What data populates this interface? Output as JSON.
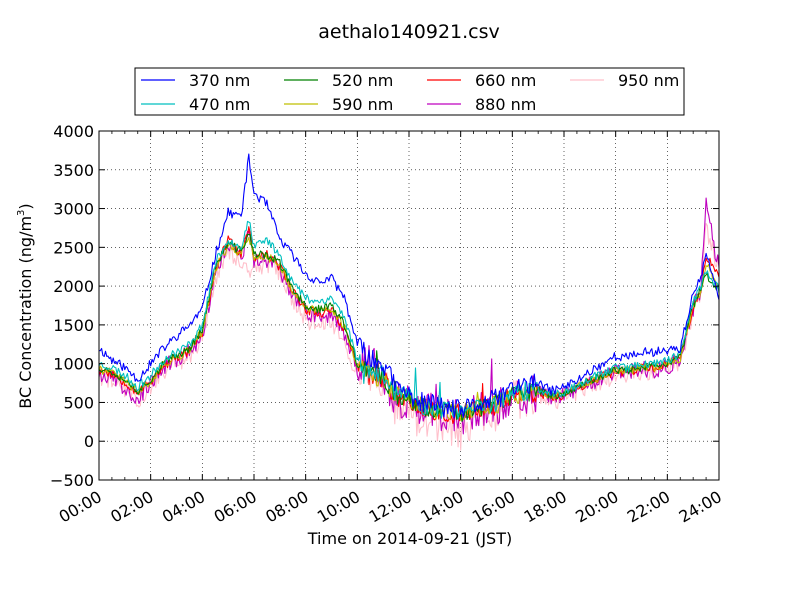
{
  "chart_data": {
    "type": "line",
    "title": "aethalo140921.csv",
    "xlabel": "Time on 2014-09-21 (JST)",
    "ylabel_main": "BC Concentration (ng/m",
    "ylabel_sup": "3",
    "ylabel_end": ")",
    "xlim": [
      0,
      24
    ],
    "ylim": [
      -500,
      4000
    ],
    "grid": true,
    "legend_position": "top",
    "x_ticks": [
      {
        "value": 0,
        "label": "00:00"
      },
      {
        "value": 2,
        "label": "02:00"
      },
      {
        "value": 4,
        "label": "04:00"
      },
      {
        "value": 6,
        "label": "06:00"
      },
      {
        "value": 8,
        "label": "08:00"
      },
      {
        "value": 10,
        "label": "10:00"
      },
      {
        "value": 12,
        "label": "12:00"
      },
      {
        "value": 14,
        "label": "14:00"
      },
      {
        "value": 16,
        "label": "16:00"
      },
      {
        "value": 18,
        "label": "18:00"
      },
      {
        "value": 20,
        "label": "20:00"
      },
      {
        "value": 22,
        "label": "22:00"
      },
      {
        "value": 24,
        "label": "24:00"
      }
    ],
    "y_ticks": [
      {
        "value": 4000,
        "label": "4000"
      },
      {
        "value": 3500,
        "label": "3500"
      },
      {
        "value": 3000,
        "label": "3000"
      },
      {
        "value": 2500,
        "label": "2500"
      },
      {
        "value": 2000,
        "label": "2000"
      },
      {
        "value": 1500,
        "label": "1500"
      },
      {
        "value": 1000,
        "label": "1000"
      },
      {
        "value": 500,
        "label": "500"
      },
      {
        "value": 0,
        "label": "0"
      },
      {
        "value": -500,
        "label": "−500"
      }
    ],
    "series": [
      {
        "name": "370 nm",
        "color": "#0000ff",
        "jitter": 60,
        "seed": 11,
        "x": [
          0,
          0.5,
          1,
          1.5,
          2,
          2.5,
          3,
          3.5,
          4,
          4.5,
          5,
          5.5,
          5.8,
          6,
          6.5,
          7,
          7.5,
          8,
          8.5,
          9,
          9.5,
          10,
          10.5,
          11,
          11.5,
          12,
          12.5,
          13,
          13.5,
          14,
          14.5,
          15,
          15.5,
          16,
          16.5,
          17,
          17.5,
          18,
          18.5,
          19,
          19.5,
          20,
          20.5,
          21,
          21.5,
          22,
          22.5,
          23,
          23.3,
          23.5,
          23.8,
          24
        ],
        "y": [
          1200,
          1050,
          950,
          800,
          1000,
          1200,
          1350,
          1500,
          1700,
          2400,
          2950,
          2900,
          3650,
          3200,
          3050,
          2600,
          2400,
          2150,
          2050,
          2100,
          1850,
          1250,
          1050,
          1000,
          700,
          600,
          500,
          480,
          420,
          400,
          450,
          500,
          560,
          700,
          720,
          750,
          650,
          700,
          780,
          900,
          1000,
          1100,
          1080,
          1150,
          1150,
          1180,
          1200,
          1900,
          2100,
          2400,
          2100,
          1850
        ]
      },
      {
        "name": "470 nm",
        "color": "#00bfbf",
        "jitter": 55,
        "seed": 23,
        "x": [
          0,
          0.5,
          1,
          1.5,
          2,
          2.5,
          3,
          3.5,
          4,
          4.5,
          5,
          5.5,
          5.8,
          6,
          6.5,
          7,
          7.5,
          8,
          8.5,
          9,
          9.5,
          10,
          10.5,
          11,
          11.5,
          12,
          12.5,
          13,
          13.5,
          14,
          14.5,
          15,
          15.5,
          16,
          16.5,
          17,
          17.5,
          18,
          18.5,
          19,
          19.5,
          20,
          20.5,
          21,
          21.5,
          22,
          22.5,
          23,
          23.3,
          23.5,
          23.8,
          24
        ],
        "y": [
          1000,
          950,
          850,
          700,
          850,
          1050,
          1150,
          1250,
          1500,
          2300,
          2600,
          2500,
          2850,
          2500,
          2600,
          2400,
          2050,
          1850,
          1800,
          1850,
          1600,
          1050,
          900,
          850,
          620,
          560,
          460,
          430,
          390,
          380,
          420,
          460,
          520,
          620,
          640,
          680,
          600,
          640,
          720,
          820,
          880,
          960,
          950,
          1000,
          1000,
          1050,
          1120,
          1800,
          2000,
          2200,
          2050,
          1950
        ]
      },
      {
        "name": "520 nm",
        "color": "#008000",
        "jitter": 55,
        "seed": 37,
        "x": [
          0,
          0.5,
          1,
          1.5,
          2,
          2.5,
          3,
          3.5,
          4,
          4.5,
          5,
          5.5,
          5.8,
          6,
          6.5,
          7,
          7.5,
          8,
          8.5,
          9,
          9.5,
          10,
          10.5,
          11,
          11.5,
          12,
          12.5,
          13,
          13.5,
          14,
          14.5,
          15,
          15.5,
          16,
          16.5,
          17,
          17.5,
          18,
          18.5,
          19,
          19.5,
          20,
          20.5,
          21,
          21.5,
          22,
          22.5,
          23,
          23.3,
          23.5,
          23.8,
          24
        ],
        "y": [
          950,
          900,
          800,
          650,
          800,
          1000,
          1100,
          1200,
          1450,
          2250,
          2550,
          2450,
          2700,
          2400,
          2400,
          2300,
          1950,
          1750,
          1700,
          1750,
          1500,
          1000,
          860,
          820,
          600,
          540,
          450,
          420,
          380,
          370,
          410,
          450,
          500,
          600,
          620,
          660,
          580,
          620,
          700,
          790,
          850,
          920,
          920,
          960,
          960,
          1010,
          1080,
          1750,
          1950,
          2150,
          2000,
          1950
        ]
      },
      {
        "name": "590 nm",
        "color": "#bfbf00",
        "jitter": 55,
        "seed": 41,
        "x": [
          0,
          0.5,
          1,
          1.5,
          2,
          2.5,
          3,
          3.5,
          4,
          4.5,
          5,
          5.5,
          5.8,
          6,
          6.5,
          7,
          7.5,
          8,
          8.5,
          9,
          9.5,
          10,
          10.5,
          11,
          11.5,
          12,
          12.5,
          13,
          13.5,
          14,
          14.5,
          15,
          15.5,
          16,
          16.5,
          17,
          17.5,
          18,
          18.5,
          19,
          19.5,
          20,
          20.5,
          21,
          21.5,
          22,
          22.5,
          23,
          23.3,
          23.5,
          23.8,
          24
        ],
        "y": [
          930,
          880,
          780,
          640,
          780,
          980,
          1080,
          1180,
          1420,
          2220,
          2520,
          2420,
          2650,
          2380,
          2380,
          2280,
          1930,
          1720,
          1680,
          1720,
          1480,
          980,
          850,
          800,
          590,
          530,
          440,
          410,
          370,
          360,
          400,
          440,
          490,
          590,
          610,
          650,
          570,
          610,
          690,
          780,
          840,
          910,
          910,
          950,
          950,
          1000,
          1070,
          1740,
          1940,
          2300,
          2100,
          2000
        ]
      },
      {
        "name": "660 nm",
        "color": "#ff0000",
        "jitter": 60,
        "seed": 53,
        "x": [
          0,
          0.5,
          1,
          1.5,
          2,
          2.5,
          3,
          3.5,
          4,
          4.5,
          5,
          5.5,
          5.8,
          6,
          6.5,
          7,
          7.5,
          8,
          8.5,
          9,
          9.5,
          10,
          10.5,
          11,
          11.5,
          12,
          12.5,
          13,
          13.5,
          14,
          14.5,
          15,
          15.5,
          16,
          16.5,
          17,
          17.5,
          18,
          18.5,
          19,
          19.5,
          20,
          20.5,
          21,
          21.5,
          22,
          22.5,
          23,
          23.3,
          23.5,
          23.8,
          24
        ],
        "y": [
          920,
          870,
          770,
          630,
          770,
          970,
          1070,
          1170,
          1400,
          2200,
          2600,
          2400,
          2750,
          2350,
          2400,
          2250,
          1950,
          1700,
          1650,
          1700,
          1450,
          970,
          840,
          790,
          580,
          520,
          430,
          400,
          360,
          350,
          390,
          430,
          480,
          580,
          600,
          640,
          560,
          600,
          680,
          770,
          830,
          900,
          900,
          940,
          940,
          990,
          1060,
          1730,
          1930,
          2400,
          2200,
          2150
        ]
      },
      {
        "name": "880 nm",
        "color": "#bf00bf",
        "jitter": 110,
        "seed": 67,
        "x": [
          0,
          0.5,
          1,
          1.5,
          2,
          2.5,
          3,
          3.5,
          4,
          4.5,
          5,
          5.5,
          5.8,
          6,
          6.5,
          7,
          7.5,
          8,
          8.5,
          9,
          9.5,
          10,
          10.5,
          11,
          11.5,
          12,
          12.5,
          13,
          13.5,
          14,
          14.5,
          15,
          15.5,
          16,
          16.5,
          17,
          17.5,
          18,
          18.5,
          19,
          19.5,
          20,
          20.5,
          21,
          21.5,
          22,
          22.5,
          23,
          23.3,
          23.5,
          23.8,
          24
        ],
        "y": [
          880,
          830,
          700,
          550,
          750,
          950,
          1050,
          1150,
          1380,
          2150,
          2550,
          2350,
          2700,
          2300,
          2350,
          2200,
          1900,
          1650,
          1600,
          1650,
          1400,
          950,
          1100,
          750,
          560,
          500,
          420,
          380,
          340,
          300,
          380,
          420,
          460,
          560,
          580,
          620,
          540,
          580,
          660,
          750,
          810,
          880,
          880,
          920,
          920,
          970,
          1050,
          1720,
          1950,
          3150,
          2500,
          2300
        ]
      },
      {
        "name": "950 nm",
        "color": "#ffc0cb",
        "jitter": 130,
        "seed": 79,
        "x": [
          0,
          0.5,
          1,
          1.5,
          2,
          2.5,
          3,
          3.5,
          4,
          4.5,
          5,
          5.5,
          5.8,
          6,
          6.5,
          7,
          7.5,
          8,
          8.5,
          9,
          9.5,
          10,
          10.5,
          11,
          11.5,
          12,
          12.5,
          13,
          13.5,
          14,
          14.5,
          15,
          15.5,
          16,
          16.5,
          17,
          17.5,
          18,
          18.5,
          19,
          19.5,
          20,
          20.5,
          21,
          21.5,
          22,
          22.5,
          23,
          23.3,
          23.5,
          23.8,
          24
        ],
        "y": [
          850,
          800,
          680,
          520,
          720,
          920,
          1020,
          1120,
          1350,
          2100,
          2500,
          2300,
          2100,
          2250,
          2300,
          2150,
          1850,
          1550,
          1500,
          1550,
          1250,
          900,
          800,
          700,
          450,
          380,
          300,
          250,
          200,
          150,
          280,
          350,
          400,
          520,
          550,
          600,
          520,
          560,
          640,
          730,
          790,
          860,
          860,
          900,
          900,
          950,
          1030,
          1700,
          1900,
          2800,
          2400,
          2250
        ]
      }
    ]
  }
}
